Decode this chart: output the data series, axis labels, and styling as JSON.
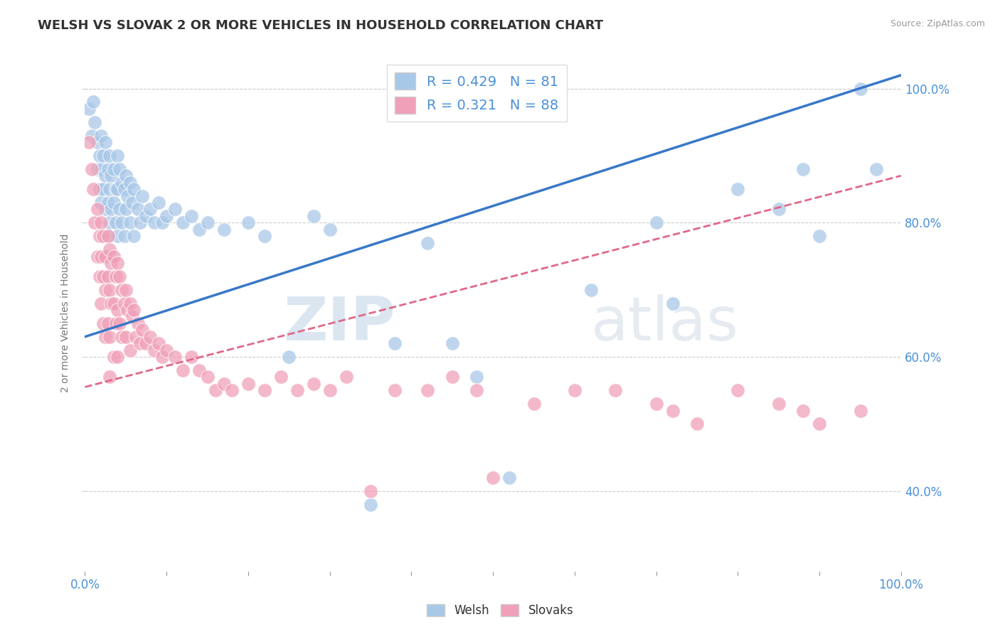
{
  "title": "WELSH VS SLOVAK 2 OR MORE VEHICLES IN HOUSEHOLD CORRELATION CHART",
  "source": "Source: ZipAtlas.com",
  "ylabel": "2 or more Vehicles in Household",
  "welsh_color": "#a8c8e8",
  "slovak_color": "#f0a0b8",
  "welsh_line_color": "#3878c8",
  "slovak_line_color": "#e06888",
  "welsh_R": 0.429,
  "welsh_N": 81,
  "slovak_R": 0.321,
  "slovak_N": 88,
  "legend_text_color": "#4a90d9",
  "watermark_color": "#c8dff0",
  "background_color": "#ffffff",
  "xlim": [
    0.0,
    1.0
  ],
  "ylim": [
    0.28,
    1.05
  ],
  "ytick_positions": [
    0.4,
    0.6,
    0.8,
    1.0
  ],
  "ytick_labels": [
    "40.0%",
    "60.0%",
    "80.0%",
    "100.0%"
  ],
  "welsh_scatter": [
    [
      0.005,
      0.97
    ],
    [
      0.008,
      0.93
    ],
    [
      0.01,
      0.98
    ],
    [
      0.012,
      0.95
    ],
    [
      0.015,
      0.92
    ],
    [
      0.015,
      0.88
    ],
    [
      0.018,
      0.9
    ],
    [
      0.018,
      0.85
    ],
    [
      0.02,
      0.93
    ],
    [
      0.02,
      0.88
    ],
    [
      0.02,
      0.83
    ],
    [
      0.022,
      0.9
    ],
    [
      0.022,
      0.85
    ],
    [
      0.025,
      0.92
    ],
    [
      0.025,
      0.87
    ],
    [
      0.025,
      0.82
    ],
    [
      0.028,
      0.88
    ],
    [
      0.028,
      0.83
    ],
    [
      0.028,
      0.78
    ],
    [
      0.03,
      0.9
    ],
    [
      0.03,
      0.85
    ],
    [
      0.03,
      0.8
    ],
    [
      0.03,
      0.75
    ],
    [
      0.032,
      0.87
    ],
    [
      0.032,
      0.82
    ],
    [
      0.035,
      0.88
    ],
    [
      0.035,
      0.83
    ],
    [
      0.038,
      0.85
    ],
    [
      0.038,
      0.8
    ],
    [
      0.04,
      0.9
    ],
    [
      0.04,
      0.85
    ],
    [
      0.04,
      0.78
    ],
    [
      0.042,
      0.88
    ],
    [
      0.042,
      0.82
    ],
    [
      0.045,
      0.86
    ],
    [
      0.045,
      0.8
    ],
    [
      0.048,
      0.85
    ],
    [
      0.048,
      0.78
    ],
    [
      0.05,
      0.87
    ],
    [
      0.05,
      0.82
    ],
    [
      0.052,
      0.84
    ],
    [
      0.055,
      0.86
    ],
    [
      0.055,
      0.8
    ],
    [
      0.058,
      0.83
    ],
    [
      0.06,
      0.85
    ],
    [
      0.06,
      0.78
    ],
    [
      0.065,
      0.82
    ],
    [
      0.068,
      0.8
    ],
    [
      0.07,
      0.84
    ],
    [
      0.075,
      0.81
    ],
    [
      0.08,
      0.82
    ],
    [
      0.085,
      0.8
    ],
    [
      0.09,
      0.83
    ],
    [
      0.095,
      0.8
    ],
    [
      0.1,
      0.81
    ],
    [
      0.11,
      0.82
    ],
    [
      0.12,
      0.8
    ],
    [
      0.13,
      0.81
    ],
    [
      0.14,
      0.79
    ],
    [
      0.15,
      0.8
    ],
    [
      0.17,
      0.79
    ],
    [
      0.2,
      0.8
    ],
    [
      0.22,
      0.78
    ],
    [
      0.25,
      0.6
    ],
    [
      0.28,
      0.81
    ],
    [
      0.3,
      0.79
    ],
    [
      0.35,
      0.38
    ],
    [
      0.38,
      0.62
    ],
    [
      0.42,
      0.77
    ],
    [
      0.45,
      0.62
    ],
    [
      0.48,
      0.57
    ],
    [
      0.52,
      0.42
    ],
    [
      0.62,
      0.7
    ],
    [
      0.7,
      0.8
    ],
    [
      0.72,
      0.68
    ],
    [
      0.8,
      0.85
    ],
    [
      0.85,
      0.82
    ],
    [
      0.88,
      0.88
    ],
    [
      0.9,
      0.78
    ],
    [
      0.95,
      1.0
    ],
    [
      0.97,
      0.88
    ]
  ],
  "slovak_scatter": [
    [
      0.005,
      0.92
    ],
    [
      0.008,
      0.88
    ],
    [
      0.01,
      0.85
    ],
    [
      0.012,
      0.8
    ],
    [
      0.015,
      0.82
    ],
    [
      0.015,
      0.75
    ],
    [
      0.018,
      0.78
    ],
    [
      0.018,
      0.72
    ],
    [
      0.02,
      0.8
    ],
    [
      0.02,
      0.75
    ],
    [
      0.02,
      0.68
    ],
    [
      0.022,
      0.78
    ],
    [
      0.022,
      0.72
    ],
    [
      0.022,
      0.65
    ],
    [
      0.025,
      0.75
    ],
    [
      0.025,
      0.7
    ],
    [
      0.025,
      0.63
    ],
    [
      0.028,
      0.78
    ],
    [
      0.028,
      0.72
    ],
    [
      0.028,
      0.65
    ],
    [
      0.03,
      0.76
    ],
    [
      0.03,
      0.7
    ],
    [
      0.03,
      0.63
    ],
    [
      0.03,
      0.57
    ],
    [
      0.032,
      0.74
    ],
    [
      0.032,
      0.68
    ],
    [
      0.035,
      0.75
    ],
    [
      0.035,
      0.68
    ],
    [
      0.035,
      0.6
    ],
    [
      0.038,
      0.72
    ],
    [
      0.038,
      0.65
    ],
    [
      0.04,
      0.74
    ],
    [
      0.04,
      0.67
    ],
    [
      0.04,
      0.6
    ],
    [
      0.042,
      0.72
    ],
    [
      0.042,
      0.65
    ],
    [
      0.045,
      0.7
    ],
    [
      0.045,
      0.63
    ],
    [
      0.048,
      0.68
    ],
    [
      0.05,
      0.7
    ],
    [
      0.05,
      0.63
    ],
    [
      0.052,
      0.67
    ],
    [
      0.055,
      0.68
    ],
    [
      0.055,
      0.61
    ],
    [
      0.058,
      0.66
    ],
    [
      0.06,
      0.67
    ],
    [
      0.062,
      0.63
    ],
    [
      0.065,
      0.65
    ],
    [
      0.068,
      0.62
    ],
    [
      0.07,
      0.64
    ],
    [
      0.075,
      0.62
    ],
    [
      0.08,
      0.63
    ],
    [
      0.085,
      0.61
    ],
    [
      0.09,
      0.62
    ],
    [
      0.095,
      0.6
    ],
    [
      0.1,
      0.61
    ],
    [
      0.11,
      0.6
    ],
    [
      0.12,
      0.58
    ],
    [
      0.13,
      0.6
    ],
    [
      0.14,
      0.58
    ],
    [
      0.15,
      0.57
    ],
    [
      0.16,
      0.55
    ],
    [
      0.17,
      0.56
    ],
    [
      0.18,
      0.55
    ],
    [
      0.2,
      0.56
    ],
    [
      0.22,
      0.55
    ],
    [
      0.24,
      0.57
    ],
    [
      0.26,
      0.55
    ],
    [
      0.28,
      0.56
    ],
    [
      0.3,
      0.55
    ],
    [
      0.32,
      0.57
    ],
    [
      0.35,
      0.4
    ],
    [
      0.38,
      0.55
    ],
    [
      0.42,
      0.55
    ],
    [
      0.45,
      0.57
    ],
    [
      0.48,
      0.55
    ],
    [
      0.5,
      0.42
    ],
    [
      0.55,
      0.53
    ],
    [
      0.6,
      0.55
    ],
    [
      0.65,
      0.55
    ],
    [
      0.7,
      0.53
    ],
    [
      0.72,
      0.52
    ],
    [
      0.75,
      0.5
    ],
    [
      0.8,
      0.55
    ],
    [
      0.85,
      0.53
    ],
    [
      0.88,
      0.52
    ],
    [
      0.9,
      0.5
    ],
    [
      0.95,
      0.52
    ]
  ]
}
